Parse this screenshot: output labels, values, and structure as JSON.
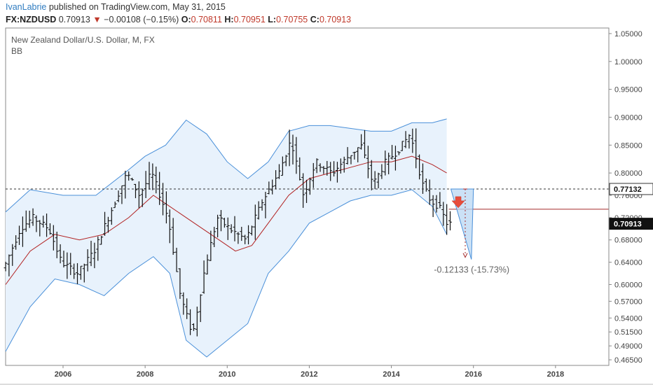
{
  "header": {
    "author": "IvanLabrie",
    "published_text": "published on TradingView.com, May 31, 2015",
    "symbol": "FX:NZDUSD",
    "last": "0.70913",
    "change_arrow": "down-triangle-icon",
    "change": "−0.00108 (−0.15%)",
    "open_label": "O:",
    "open": "0.70811",
    "high_label": "H:",
    "high": "0.70951",
    "low_label": "L:",
    "low": "0.70755",
    "close_label": "C:",
    "close": "0.70913"
  },
  "chart_data": {
    "type": "candlestick",
    "title": "New Zealand Dollar/U.S. Dollar, M, FX",
    "indicator": "BB",
    "x_ticks": [
      "2006",
      "2008",
      "2010",
      "2012",
      "2014",
      "2016",
      "2018"
    ],
    "y_ticks": [
      "1.05000",
      "1.00000",
      "0.95000",
      "0.90000",
      "0.85000",
      "0.80000",
      "0.76000",
      "0.72000",
      "0.68000",
      "0.64000",
      "0.60000",
      "0.57000",
      "0.54000",
      "0.51500",
      "0.49000",
      "0.46500"
    ],
    "ylim": [
      0.455,
      1.06
    ],
    "xlim": [
      2004.6,
      2019.3
    ],
    "horizontal_line_value": 0.77132,
    "horizontal_line_label": "0.77132",
    "last_price_label": "0.70913",
    "target_line_value": 0.735,
    "measure_text": "-0.12133 (-15.73%)",
    "colors": {
      "upper_band": "#4a90d9",
      "lower_band": "#4a90d9",
      "middle_band": "#b22222",
      "band_fill": "#e8f2fc",
      "target_line": "#a52a2a",
      "arrow": "#e74c3c",
      "projection_fill": "#b9d7f3"
    },
    "price_path": [
      [
        2004.6,
        0.63
      ],
      [
        2005.0,
        0.7
      ],
      [
        2005.3,
        0.72
      ],
      [
        2005.7,
        0.7
      ],
      [
        2006.0,
        0.64
      ],
      [
        2006.4,
        0.62
      ],
      [
        2006.8,
        0.66
      ],
      [
        2007.2,
        0.73
      ],
      [
        2007.6,
        0.8
      ],
      [
        2007.9,
        0.76
      ],
      [
        2008.2,
        0.8
      ],
      [
        2008.6,
        0.72
      ],
      [
        2008.9,
        0.58
      ],
      [
        2009.2,
        0.51
      ],
      [
        2009.5,
        0.63
      ],
      [
        2009.8,
        0.72
      ],
      [
        2010.1,
        0.7
      ],
      [
        2010.5,
        0.68
      ],
      [
        2010.9,
        0.75
      ],
      [
        2011.3,
        0.8
      ],
      [
        2011.6,
        0.86
      ],
      [
        2011.9,
        0.76
      ],
      [
        2012.2,
        0.82
      ],
      [
        2012.6,
        0.8
      ],
      [
        2013.0,
        0.83
      ],
      [
        2013.3,
        0.85
      ],
      [
        2013.6,
        0.78
      ],
      [
        2013.9,
        0.82
      ],
      [
        2014.2,
        0.84
      ],
      [
        2014.5,
        0.87
      ],
      [
        2014.8,
        0.78
      ],
      [
        2015.0,
        0.75
      ],
      [
        2015.2,
        0.74
      ],
      [
        2015.4,
        0.709
      ]
    ],
    "upper_band": [
      [
        2004.6,
        0.73
      ],
      [
        2005.2,
        0.77
      ],
      [
        2006.0,
        0.76
      ],
      [
        2006.8,
        0.76
      ],
      [
        2007.5,
        0.8
      ],
      [
        2008.0,
        0.83
      ],
      [
        2008.5,
        0.85
      ],
      [
        2009.0,
        0.895
      ],
      [
        2009.5,
        0.87
      ],
      [
        2010.0,
        0.82
      ],
      [
        2010.5,
        0.79
      ],
      [
        2011.0,
        0.82
      ],
      [
        2011.5,
        0.875
      ],
      [
        2012.0,
        0.885
      ],
      [
        2012.5,
        0.885
      ],
      [
        2013.0,
        0.88
      ],
      [
        2013.5,
        0.875
      ],
      [
        2014.0,
        0.875
      ],
      [
        2014.5,
        0.89
      ],
      [
        2015.0,
        0.89
      ],
      [
        2015.35,
        0.897
      ]
    ],
    "middle_band": [
      [
        2004.6,
        0.6
      ],
      [
        2005.2,
        0.66
      ],
      [
        2005.8,
        0.69
      ],
      [
        2006.4,
        0.68
      ],
      [
        2007.0,
        0.69
      ],
      [
        2007.6,
        0.72
      ],
      [
        2008.2,
        0.76
      ],
      [
        2008.6,
        0.74
      ],
      [
        2009.2,
        0.71
      ],
      [
        2009.8,
        0.68
      ],
      [
        2010.2,
        0.66
      ],
      [
        2010.6,
        0.67
      ],
      [
        2011.0,
        0.71
      ],
      [
        2011.5,
        0.76
      ],
      [
        2012.0,
        0.79
      ],
      [
        2012.5,
        0.8
      ],
      [
        2013.0,
        0.81
      ],
      [
        2013.5,
        0.82
      ],
      [
        2014.0,
        0.82
      ],
      [
        2014.5,
        0.83
      ],
      [
        2015.0,
        0.815
      ],
      [
        2015.35,
        0.8
      ]
    ],
    "lower_band": [
      [
        2004.6,
        0.48
      ],
      [
        2005.2,
        0.56
      ],
      [
        2005.8,
        0.61
      ],
      [
        2006.4,
        0.6
      ],
      [
        2007.0,
        0.58
      ],
      [
        2007.6,
        0.62
      ],
      [
        2008.2,
        0.65
      ],
      [
        2008.6,
        0.62
      ],
      [
        2009.0,
        0.5
      ],
      [
        2009.5,
        0.47
      ],
      [
        2010.0,
        0.5
      ],
      [
        2010.5,
        0.53
      ],
      [
        2011.0,
        0.62
      ],
      [
        2011.5,
        0.66
      ],
      [
        2012.0,
        0.71
      ],
      [
        2012.5,
        0.73
      ],
      [
        2013.0,
        0.75
      ],
      [
        2013.5,
        0.76
      ],
      [
        2014.0,
        0.76
      ],
      [
        2014.5,
        0.77
      ],
      [
        2015.0,
        0.74
      ],
      [
        2015.35,
        0.69
      ]
    ]
  }
}
